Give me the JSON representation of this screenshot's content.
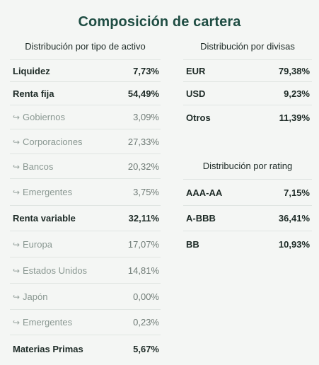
{
  "title": "Composición de cartera",
  "sections": {
    "asset": {
      "title": "Distribución por tipo de activo",
      "rows": [
        {
          "label": "Liquidez",
          "value": "7,73%"
        },
        {
          "label": "Renta fija",
          "value": "54,49%"
        },
        {
          "label": "Gobiernos",
          "value": "3,09%"
        },
        {
          "label": "Corporaciones",
          "value": "27,33%"
        },
        {
          "label": "Bancos",
          "value": "20,32%"
        },
        {
          "label": "Emergentes",
          "value": "3,75%"
        },
        {
          "label": "Renta variable",
          "value": "32,11%"
        },
        {
          "label": "Europa",
          "value": "17,07%"
        },
        {
          "label": "Estados Unidos",
          "value": "14,81%"
        },
        {
          "label": "Japón",
          "value": "0,00%"
        },
        {
          "label": "Emergentes",
          "value": "0,23%"
        },
        {
          "label": "Materias Primas",
          "value": "5,67%"
        }
      ]
    },
    "currency": {
      "title": "Distribución por divisas",
      "rows": [
        {
          "label": "EUR",
          "value": "79,38%"
        },
        {
          "label": "USD",
          "value": "9,23%"
        },
        {
          "label": "Otros",
          "value": "11,39%"
        }
      ]
    },
    "rating": {
      "title": "Distribución por rating",
      "rows": [
        {
          "label": "AAA-AA",
          "value": "7,15%"
        },
        {
          "label": "A-BBB",
          "value": "36,41%"
        },
        {
          "label": "BB",
          "value": "10,93%"
        }
      ]
    }
  },
  "colors": {
    "accent": "#1f4d43",
    "background": "#f4f6f4",
    "divider": "#e0e5e2",
    "subtext": "#8a9892"
  },
  "icons": {
    "subrow": "return-arrow-icon"
  }
}
